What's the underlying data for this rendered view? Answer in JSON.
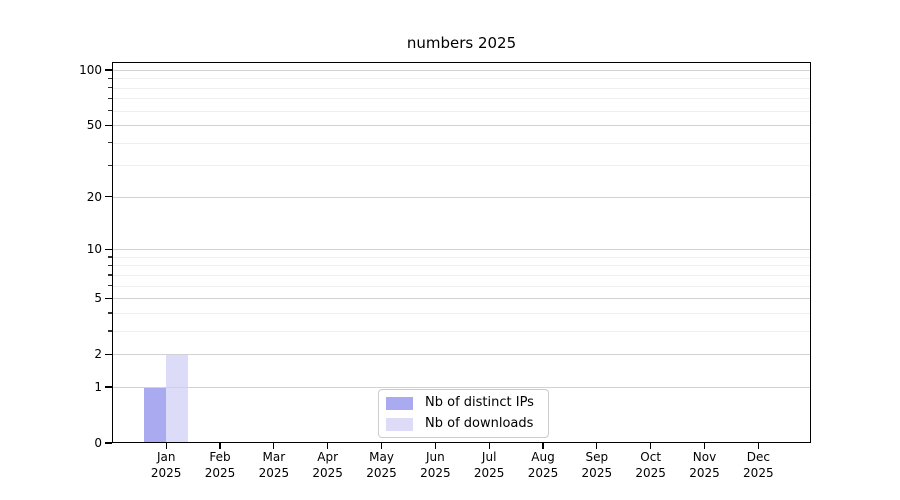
{
  "chart_data": {
    "type": "bar",
    "title": "numbers 2025",
    "categories": [
      "Jan 2025",
      "Feb 2025",
      "Mar 2025",
      "Apr 2025",
      "May 2025",
      "Jun 2025",
      "Jul 2025",
      "Aug 2025",
      "Sep 2025",
      "Oct 2025",
      "Nov 2025",
      "Dec 2025"
    ],
    "series": [
      {
        "name": "Nb of distinct IPs",
        "color": "#aaaaf0",
        "values": [
          1,
          0,
          0,
          0,
          0,
          0,
          0,
          0,
          0,
          0,
          0,
          0
        ]
      },
      {
        "name": "Nb of downloads",
        "color": "#dcdcf8",
        "values": [
          2,
          0,
          0,
          0,
          0,
          0,
          0,
          0,
          0,
          0,
          0,
          0
        ]
      }
    ],
    "xlabel": "",
    "ylabel": "",
    "yscale": "log1p",
    "ylim": [
      0,
      110.4
    ],
    "y_major_ticks": [
      0,
      1,
      2,
      5,
      10,
      20,
      50,
      100
    ],
    "y_minor_ticks": [
      3,
      4,
      6,
      7,
      8,
      9,
      30,
      40,
      60,
      70,
      80,
      90
    ],
    "grid": "horizontal",
    "legend_position": "lower center"
  }
}
